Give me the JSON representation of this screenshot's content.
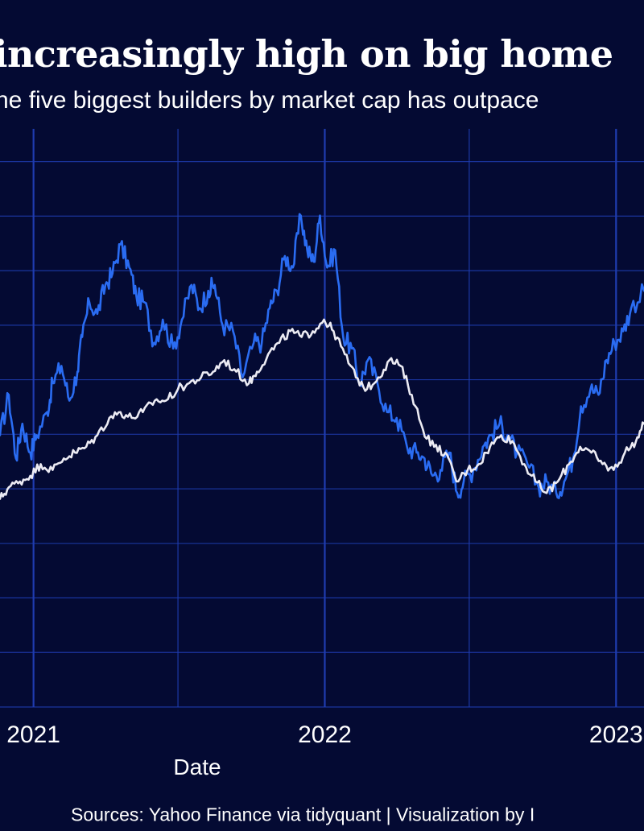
{
  "title": "increasingly high on big home",
  "subtitle": "he five biggest builders by market cap has outpace",
  "source": "Sources: Yahoo Finance via tidyquant | Visualization by I",
  "colors": {
    "background": "#040a33",
    "grid": "#1f3cb0",
    "builders_line": "#2a6cf2",
    "benchmark_line": "#ecebf3",
    "text": "#ffffff"
  },
  "chart_data": {
    "type": "line",
    "title": "increasingly high on big home",
    "subtitle": "he five biggest builders by market cap has outpace",
    "xlabel": "Date",
    "ylabel": "",
    "x_ticks": [
      "2021",
      "2022",
      "2023"
    ],
    "xlim": [
      "2020-11-20",
      "2023-02-05"
    ],
    "ylim": [
      0,
      1
    ],
    "grid": true,
    "legend": "none",
    "series": [
      {
        "color": "#2a6cf2",
        "points": [
          [
            "2020-11-20",
            0.47
          ],
          [
            "2020-12-01",
            0.54
          ],
          [
            "2020-12-10",
            0.43
          ],
          [
            "2020-12-18",
            0.49
          ],
          [
            "2020-12-28",
            0.44
          ],
          [
            "2021-01-05",
            0.47
          ],
          [
            "2021-01-18",
            0.51
          ],
          [
            "2021-01-25",
            0.56
          ],
          [
            "2021-02-05",
            0.59
          ],
          [
            "2021-02-15",
            0.53
          ],
          [
            "2021-02-25",
            0.58
          ],
          [
            "2021-03-03",
            0.64
          ],
          [
            "2021-03-12",
            0.7
          ],
          [
            "2021-03-22",
            0.68
          ],
          [
            "2021-04-01",
            0.73
          ],
          [
            "2021-04-10",
            0.75
          ],
          [
            "2021-04-20",
            0.8
          ],
          [
            "2021-05-01",
            0.76
          ],
          [
            "2021-05-10",
            0.71
          ],
          [
            "2021-05-20",
            0.7
          ],
          [
            "2021-06-01",
            0.63
          ],
          [
            "2021-06-12",
            0.67
          ],
          [
            "2021-06-25",
            0.62
          ],
          [
            "2021-07-06",
            0.67
          ],
          [
            "2021-07-18",
            0.73
          ],
          [
            "2021-07-28",
            0.69
          ],
          [
            "2021-08-08",
            0.72
          ],
          [
            "2021-08-16",
            0.73
          ],
          [
            "2021-08-26",
            0.66
          ],
          [
            "2021-09-08",
            0.65
          ],
          [
            "2021-09-20",
            0.57
          ],
          [
            "2021-10-04",
            0.63
          ],
          [
            "2021-10-14",
            0.63
          ],
          [
            "2021-10-24",
            0.69
          ],
          [
            "2021-11-02",
            0.72
          ],
          [
            "2021-11-12",
            0.78
          ],
          [
            "2021-11-22",
            0.76
          ],
          [
            "2021-12-02",
            0.85
          ],
          [
            "2021-12-10",
            0.79
          ],
          [
            "2021-12-18",
            0.77
          ],
          [
            "2021-12-26",
            0.85
          ],
          [
            "2022-01-04",
            0.76
          ],
          [
            "2022-01-14",
            0.79
          ],
          [
            "2022-01-24",
            0.64
          ],
          [
            "2022-02-04",
            0.62
          ],
          [
            "2022-02-14",
            0.56
          ],
          [
            "2022-02-24",
            0.6
          ],
          [
            "2022-03-08",
            0.56
          ],
          [
            "2022-03-20",
            0.51
          ],
          [
            "2022-04-01",
            0.5
          ],
          [
            "2022-04-14",
            0.45
          ],
          [
            "2022-04-26",
            0.44
          ],
          [
            "2022-05-06",
            0.43
          ],
          [
            "2022-05-16",
            0.4
          ],
          [
            "2022-05-26",
            0.41
          ],
          [
            "2022-06-06",
            0.44
          ],
          [
            "2022-06-16",
            0.37
          ],
          [
            "2022-06-24",
            0.39
          ],
          [
            "2022-07-06",
            0.41
          ],
          [
            "2022-07-18",
            0.45
          ],
          [
            "2022-07-28",
            0.47
          ],
          [
            "2022-08-08",
            0.49
          ],
          [
            "2022-08-18",
            0.47
          ],
          [
            "2022-08-30",
            0.44
          ],
          [
            "2022-09-12",
            0.42
          ],
          [
            "2022-09-26",
            0.38
          ],
          [
            "2022-10-06",
            0.39
          ],
          [
            "2022-10-18",
            0.37
          ],
          [
            "2022-10-28",
            0.39
          ],
          [
            "2022-11-08",
            0.43
          ],
          [
            "2022-11-18",
            0.52
          ],
          [
            "2022-11-30",
            0.55
          ],
          [
            "2022-12-10",
            0.54
          ],
          [
            "2022-12-20",
            0.6
          ],
          [
            "2022-12-30",
            0.63
          ],
          [
            "2023-01-10",
            0.65
          ],
          [
            "2023-01-20",
            0.69
          ],
          [
            "2023-02-05",
            0.72
          ]
        ]
      },
      {
        "color": "#ecebf3",
        "points": [
          [
            "2020-11-20",
            0.36
          ],
          [
            "2020-12-01",
            0.38
          ],
          [
            "2020-12-15",
            0.39
          ],
          [
            "2020-12-28",
            0.4
          ],
          [
            "2021-01-10",
            0.42
          ],
          [
            "2021-01-25",
            0.41
          ],
          [
            "2021-02-08",
            0.43
          ],
          [
            "2021-02-22",
            0.44
          ],
          [
            "2021-03-08",
            0.45
          ],
          [
            "2021-03-22",
            0.47
          ],
          [
            "2021-04-06",
            0.5
          ],
          [
            "2021-04-20",
            0.51
          ],
          [
            "2021-05-04",
            0.5
          ],
          [
            "2021-05-18",
            0.51
          ],
          [
            "2021-06-02",
            0.53
          ],
          [
            "2021-06-16",
            0.53
          ],
          [
            "2021-07-01",
            0.55
          ],
          [
            "2021-07-15",
            0.56
          ],
          [
            "2021-07-30",
            0.57
          ],
          [
            "2021-08-14",
            0.58
          ],
          [
            "2021-08-28",
            0.6
          ],
          [
            "2021-09-12",
            0.58
          ],
          [
            "2021-09-28",
            0.56
          ],
          [
            "2021-10-08",
            0.58
          ],
          [
            "2021-10-22",
            0.61
          ],
          [
            "2021-11-05",
            0.63
          ],
          [
            "2021-11-19",
            0.65
          ],
          [
            "2021-12-03",
            0.64
          ],
          [
            "2021-12-17",
            0.65
          ],
          [
            "2021-12-31",
            0.67
          ],
          [
            "2022-01-12",
            0.65
          ],
          [
            "2022-01-26",
            0.61
          ],
          [
            "2022-02-09",
            0.57
          ],
          [
            "2022-02-23",
            0.55
          ],
          [
            "2022-03-09",
            0.57
          ],
          [
            "2022-03-23",
            0.6
          ],
          [
            "2022-04-06",
            0.59
          ],
          [
            "2022-04-20",
            0.54
          ],
          [
            "2022-05-04",
            0.48
          ],
          [
            "2022-05-18",
            0.45
          ],
          [
            "2022-06-01",
            0.44
          ],
          [
            "2022-06-15",
            0.39
          ],
          [
            "2022-06-29",
            0.41
          ],
          [
            "2022-07-13",
            0.42
          ],
          [
            "2022-07-27",
            0.45
          ],
          [
            "2022-08-10",
            0.47
          ],
          [
            "2022-08-24",
            0.46
          ],
          [
            "2022-09-08",
            0.42
          ],
          [
            "2022-09-22",
            0.39
          ],
          [
            "2022-10-06",
            0.37
          ],
          [
            "2022-10-20",
            0.39
          ],
          [
            "2022-11-03",
            0.42
          ],
          [
            "2022-11-17",
            0.45
          ],
          [
            "2022-12-01",
            0.44
          ],
          [
            "2022-12-15",
            0.42
          ],
          [
            "2022-12-29",
            0.41
          ],
          [
            "2023-01-12",
            0.44
          ],
          [
            "2023-01-26",
            0.46
          ],
          [
            "2023-02-05",
            0.49
          ]
        ]
      }
    ]
  }
}
